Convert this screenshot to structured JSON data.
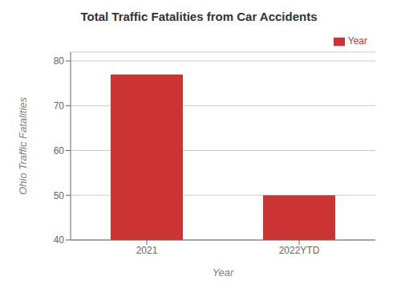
{
  "chart_data": {
    "type": "bar",
    "title": "Total Traffic Fatalities from Car Accidents",
    "xlabel": "Year",
    "ylabel": "Ohio Traffic Fatalities",
    "categories": [
      "2021",
      "2022YTD"
    ],
    "series": [
      {
        "name": "Year",
        "color": "#cc3333",
        "values": [
          77,
          50
        ]
      }
    ],
    "ylim": [
      40,
      82
    ],
    "yticks": [
      40,
      50,
      60,
      70,
      80
    ],
    "grid": true,
    "legend": "upper right"
  }
}
